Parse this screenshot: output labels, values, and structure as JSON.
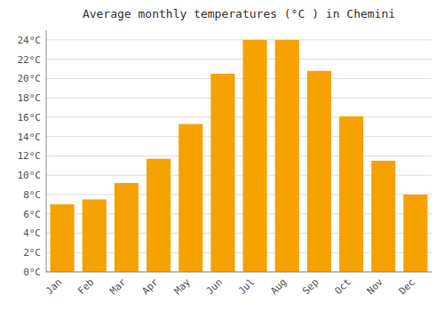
{
  "chart_data": {
    "type": "bar",
    "title": "Average monthly temperatures (°C ) in Chemini",
    "categories": [
      "Jan",
      "Feb",
      "Mar",
      "Apr",
      "May",
      "Jun",
      "Jul",
      "Aug",
      "Sep",
      "Oct",
      "Nov",
      "Dec"
    ],
    "values": [
      7.0,
      7.5,
      9.2,
      11.7,
      15.3,
      20.5,
      24.0,
      24.0,
      20.8,
      16.1,
      11.5,
      8.0
    ],
    "color": "#F5A200",
    "ylim": [
      0,
      25
    ],
    "yticks": [
      {
        "value": 0,
        "label": "0°C"
      },
      {
        "value": 2,
        "label": "2°C"
      },
      {
        "value": 4,
        "label": "4°C"
      },
      {
        "value": 6,
        "label": "6°C"
      },
      {
        "value": 8,
        "label": "8°C"
      },
      {
        "value": 10,
        "label": "10°C"
      },
      {
        "value": 12,
        "label": "12°C"
      },
      {
        "value": 14,
        "label": "14°C"
      },
      {
        "value": 16,
        "label": "16°C"
      },
      {
        "value": 18,
        "label": "18°C"
      },
      {
        "value": 20,
        "label": "20°C"
      },
      {
        "value": 22,
        "label": "22°C"
      },
      {
        "value": 24,
        "label": "24°C"
      }
    ],
    "grid": true
  }
}
